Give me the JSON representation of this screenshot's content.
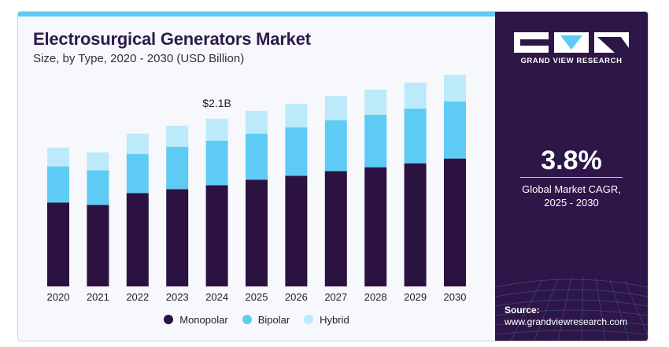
{
  "header": {
    "title": "Electrosurgical Generators Market",
    "subtitle": "Size, by Type, 2020 - 2030 (USD Billion)"
  },
  "chart_data": {
    "type": "bar",
    "stacked": true,
    "categories": [
      "2020",
      "2021",
      "2022",
      "2023",
      "2024",
      "2025",
      "2026",
      "2027",
      "2028",
      "2029",
      "2030"
    ],
    "series": [
      {
        "name": "Monopolar",
        "color": "#2b1240",
        "values": [
          1.07,
          1.04,
          1.19,
          1.24,
          1.29,
          1.36,
          1.41,
          1.47,
          1.52,
          1.57,
          1.63
        ]
      },
      {
        "name": "Bipolar",
        "color": "#5ecbf5",
        "values": [
          0.46,
          0.44,
          0.5,
          0.54,
          0.57,
          0.59,
          0.62,
          0.65,
          0.67,
          0.7,
          0.73
        ]
      },
      {
        "name": "Hybrid",
        "color": "#bdeafa",
        "values": [
          0.24,
          0.23,
          0.26,
          0.27,
          0.28,
          0.29,
          0.3,
          0.31,
          0.32,
          0.33,
          0.34
        ]
      }
    ],
    "annotations": [
      {
        "category": "2024",
        "text": "$2.1B"
      }
    ],
    "ylim": [
      0,
      2.75
    ],
    "grid": false,
    "legend_position": "bottom",
    "xlabel": "",
    "ylabel": ""
  },
  "sidebar": {
    "brand": "GRAND VIEW RESEARCH",
    "cagr_value": "3.8%",
    "cagr_label_line1": "Global Market CAGR,",
    "cagr_label_line2": "2025 - 2030",
    "source_label": "Source:",
    "source_url": "www.grandviewresearch.com"
  },
  "colors": {
    "accent": "#5ecbf5",
    "sidebar_bg": "#2e1648",
    "title": "#2e1b4a"
  }
}
